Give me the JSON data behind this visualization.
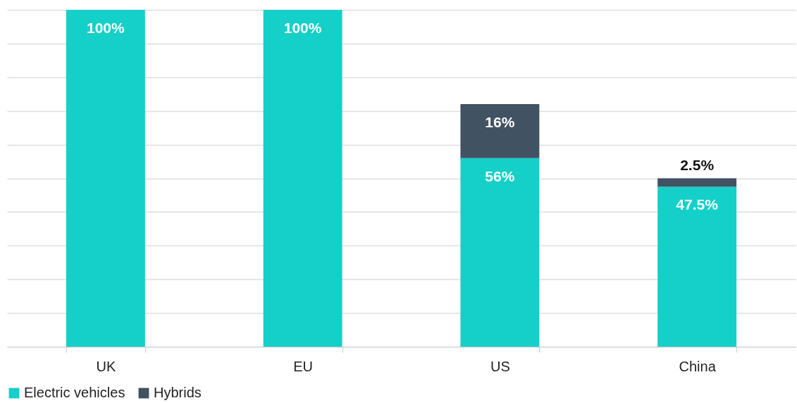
{
  "chart_data": {
    "type": "bar",
    "stacked": true,
    "categories": [
      "UK",
      "EU",
      "US",
      "China"
    ],
    "series": [
      {
        "name": "Electric vehicles",
        "color": "#14d0c8",
        "values": [
          100,
          100,
          56,
          47.5
        ],
        "value_labels": [
          "100%",
          "100%",
          "56%",
          "47.5%"
        ]
      },
      {
        "name": "Hybrids",
        "color": "#415262",
        "values": [
          0,
          0,
          16,
          2.5
        ],
        "value_labels": [
          null,
          null,
          "16%",
          "2.5%"
        ]
      }
    ],
    "ylim": [
      0,
      100
    ],
    "yticks": [
      {
        "value": 0,
        "label": null
      },
      {
        "value": 10,
        "label": null
      },
      {
        "value": 20,
        "label": null
      },
      {
        "value": 30,
        "label": null
      },
      {
        "value": 40,
        "label": null
      },
      {
        "value": 50,
        "label": null
      },
      {
        "value": 60,
        "label": null
      },
      {
        "value": 70,
        "label": null
      },
      {
        "value": 80,
        "label": null
      },
      {
        "value": 90,
        "label": null
      },
      {
        "value": 100,
        "label": null
      }
    ],
    "tick_labels": "x",
    "grid": "y",
    "legend": "bottom"
  }
}
